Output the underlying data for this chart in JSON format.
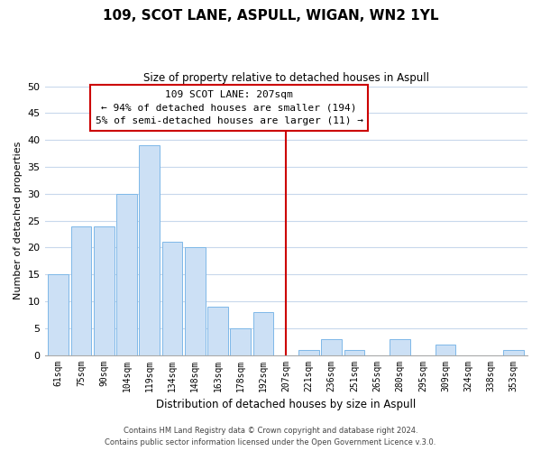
{
  "title": "109, SCOT LANE, ASPULL, WIGAN, WN2 1YL",
  "subtitle": "Size of property relative to detached houses in Aspull",
  "xlabel": "Distribution of detached houses by size in Aspull",
  "ylabel": "Number of detached properties",
  "bar_labels": [
    "61sqm",
    "75sqm",
    "90sqm",
    "104sqm",
    "119sqm",
    "134sqm",
    "148sqm",
    "163sqm",
    "178sqm",
    "192sqm",
    "207sqm",
    "221sqm",
    "236sqm",
    "251sqm",
    "265sqm",
    "280sqm",
    "295sqm",
    "309sqm",
    "324sqm",
    "338sqm",
    "353sqm"
  ],
  "bar_values": [
    15,
    24,
    24,
    30,
    39,
    21,
    20,
    9,
    5,
    8,
    0,
    1,
    3,
    1,
    0,
    3,
    0,
    2,
    0,
    0,
    1
  ],
  "bar_color": "#cce0f5",
  "bar_edge_color": "#7eb8e8",
  "ylim": [
    0,
    50
  ],
  "yticks": [
    0,
    5,
    10,
    15,
    20,
    25,
    30,
    35,
    40,
    45,
    50
  ],
  "vline_x_index": 10,
  "vline_color": "#cc0000",
  "annotation_title": "109 SCOT LANE: 207sqm",
  "annotation_line1": "← 94% of detached houses are smaller (194)",
  "annotation_line2": "5% of semi-detached houses are larger (11) →",
  "annotation_box_color": "#ffffff",
  "annotation_box_edge": "#cc0000",
  "footer_line1": "Contains HM Land Registry data © Crown copyright and database right 2024.",
  "footer_line2": "Contains public sector information licensed under the Open Government Licence v.3.0.",
  "background_color": "#ffffff",
  "grid_color": "#c8d8ec"
}
